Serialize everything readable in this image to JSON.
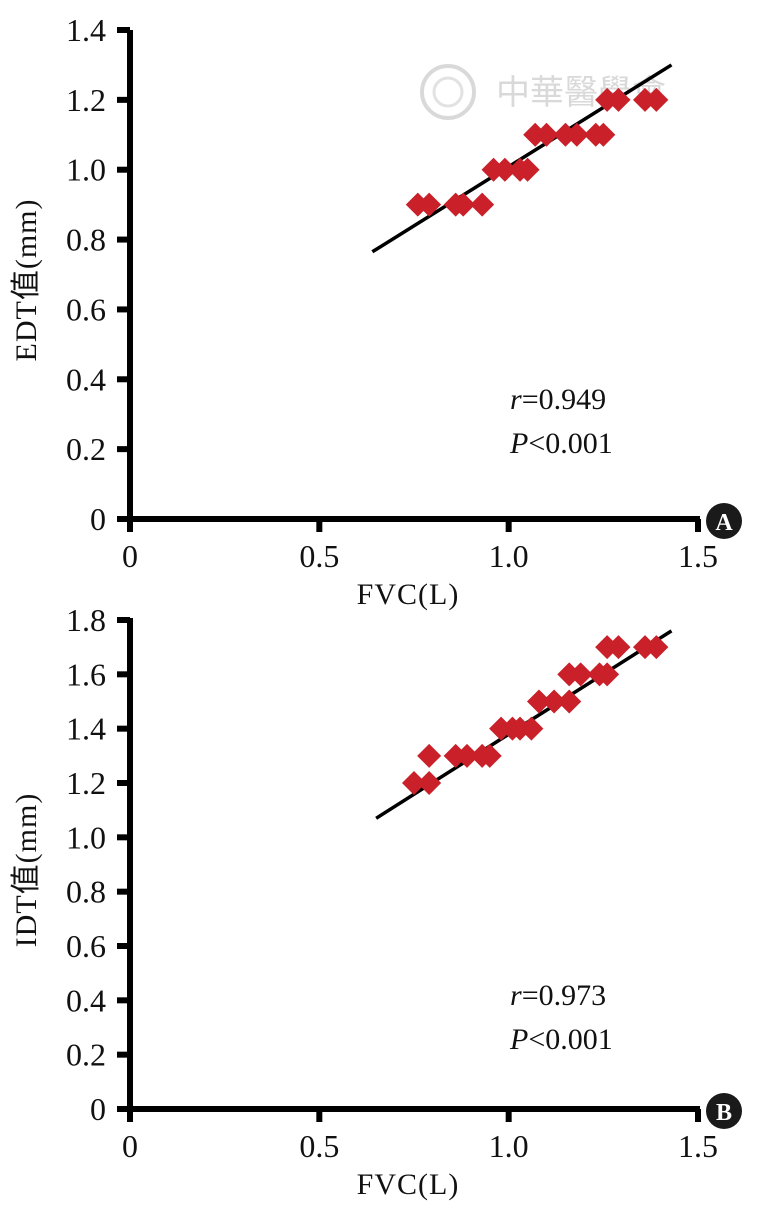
{
  "watermark": {
    "text": "中華醫學會"
  },
  "colors": {
    "marker": "#c9202a",
    "line": "#000000",
    "axis": "#000000",
    "panel_badge": "#1a1a1a"
  },
  "chart_data": [
    {
      "type": "scatter",
      "panel": "A",
      "xlabel": "FVC(L)",
      "ylabel": "EDT值(mm)",
      "xlim": [
        0,
        1.5
      ],
      "ylim": [
        0,
        1.4
      ],
      "xticks": [
        0,
        0.5,
        1.0,
        1.5
      ],
      "xtick_labels": [
        "0",
        "0.5",
        "1.0",
        "1.5"
      ],
      "yticks": [
        0,
        0.2,
        0.4,
        0.6,
        0.8,
        1.0,
        1.2,
        1.4
      ],
      "ytick_labels": [
        "0",
        "0.2",
        "0.4",
        "0.6",
        "0.8",
        "1.0",
        "1.2",
        "1.4"
      ],
      "points": [
        [
          0.76,
          0.9
        ],
        [
          0.79,
          0.9
        ],
        [
          0.86,
          0.9
        ],
        [
          0.88,
          0.9
        ],
        [
          0.93,
          0.9
        ],
        [
          0.96,
          1.0
        ],
        [
          0.99,
          1.0
        ],
        [
          1.03,
          1.0
        ],
        [
          1.05,
          1.0
        ],
        [
          1.07,
          1.1
        ],
        [
          1.1,
          1.1
        ],
        [
          1.15,
          1.1
        ],
        [
          1.18,
          1.1
        ],
        [
          1.23,
          1.1
        ],
        [
          1.25,
          1.1
        ],
        [
          1.26,
          1.2
        ],
        [
          1.29,
          1.2
        ],
        [
          1.36,
          1.2
        ],
        [
          1.39,
          1.2
        ]
      ],
      "fit_line": {
        "x": [
          0.64,
          1.43
        ],
        "y": [
          0.765,
          1.3
        ]
      },
      "stats": {
        "r_label": "r",
        "r_value": "=0.949",
        "p_label": "P",
        "p_value": "<0.001"
      }
    },
    {
      "type": "scatter",
      "panel": "B",
      "xlabel": "FVC(L)",
      "ylabel": "IDT值(mm)",
      "xlim": [
        0,
        1.5
      ],
      "ylim": [
        0,
        1.8
      ],
      "xticks": [
        0,
        0.5,
        1.0,
        1.5
      ],
      "xtick_labels": [
        "0",
        "0.5",
        "1.0",
        "1.5"
      ],
      "yticks": [
        0,
        0.2,
        0.4,
        0.6,
        0.8,
        1.0,
        1.2,
        1.4,
        1.6,
        1.8
      ],
      "ytick_labels": [
        "0",
        "0.2",
        "0.4",
        "0.6",
        "0.8",
        "1.0",
        "1.2",
        "1.4",
        "1.6",
        "1.8"
      ],
      "points": [
        [
          0.75,
          1.2
        ],
        [
          0.79,
          1.2
        ],
        [
          0.79,
          1.3
        ],
        [
          0.86,
          1.3
        ],
        [
          0.89,
          1.3
        ],
        [
          0.93,
          1.3
        ],
        [
          0.95,
          1.3
        ],
        [
          0.98,
          1.4
        ],
        [
          1.01,
          1.4
        ],
        [
          1.03,
          1.4
        ],
        [
          1.06,
          1.4
        ],
        [
          1.08,
          1.5
        ],
        [
          1.12,
          1.5
        ],
        [
          1.16,
          1.5
        ],
        [
          1.16,
          1.6
        ],
        [
          1.19,
          1.6
        ],
        [
          1.24,
          1.6
        ],
        [
          1.26,
          1.6
        ],
        [
          1.26,
          1.7
        ],
        [
          1.29,
          1.7
        ],
        [
          1.36,
          1.7
        ],
        [
          1.39,
          1.7
        ]
      ],
      "fit_line": {
        "x": [
          0.65,
          1.43
        ],
        "y": [
          1.07,
          1.76
        ]
      },
      "stats": {
        "r_label": "r",
        "r_value": "=0.973",
        "p_label": "P",
        "p_value": "<0.001"
      }
    }
  ]
}
